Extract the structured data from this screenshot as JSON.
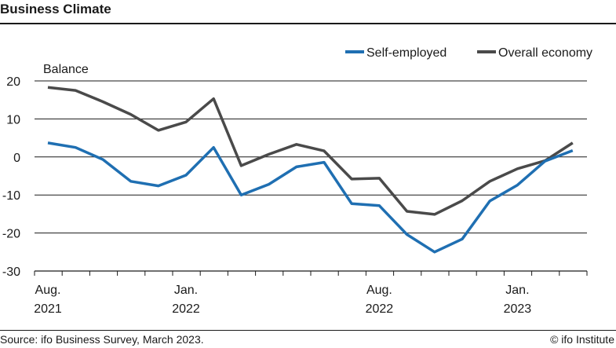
{
  "header": {
    "title": "Business Climate"
  },
  "footer": {
    "source": "Source: ifo Business Survey, March 2023.",
    "credit": "© ifo Institute"
  },
  "colors": {
    "self_employed": "#1f6fb2",
    "overall": "#4a4a4a",
    "grid": "#1a1a1a"
  },
  "chart_data": {
    "type": "line",
    "title": "Business Climate",
    "ylabel": "Balance",
    "ylim": [
      -30,
      20
    ],
    "yticks": [
      20,
      10,
      0,
      -10,
      -20,
      -30
    ],
    "grid": true,
    "legend_position": "top-right",
    "x": [
      "2021-08",
      "2021-09",
      "2021-10",
      "2021-11",
      "2021-12",
      "2022-01",
      "2022-02",
      "2022-03",
      "2022-04",
      "2022-05",
      "2022-06",
      "2022-07",
      "2022-08",
      "2022-09",
      "2022-10",
      "2022-11",
      "2022-12",
      "2023-01",
      "2023-02",
      "2023-03"
    ],
    "xtick_labels": [
      {
        "month": "Aug.",
        "year": "2021",
        "at": "2021-08"
      },
      {
        "month": "Jan.",
        "year": "2022",
        "at": "2022-01"
      },
      {
        "month": "Aug.",
        "year": "2022",
        "at": "2022-08"
      },
      {
        "month": "Jan.",
        "year": "2023",
        "at": "2023-01"
      }
    ],
    "series": [
      {
        "name": "Self-employed",
        "color": "#1f6fb2",
        "values": [
          3.7,
          2.5,
          -0.7,
          -6.4,
          -7.6,
          -4.8,
          2.5,
          -10.0,
          -7.2,
          -2.6,
          -1.4,
          -12.3,
          -12.8,
          -20.4,
          -25.0,
          -21.6,
          -11.6,
          -7.4,
          -1.1,
          1.7
        ]
      },
      {
        "name": "Overall economy",
        "color": "#4a4a4a",
        "values": [
          18.3,
          17.5,
          14.5,
          11.2,
          7.0,
          9.2,
          15.3,
          -2.3,
          0.7,
          3.3,
          1.6,
          -5.8,
          -5.6,
          -14.3,
          -15.1,
          -11.5,
          -6.4,
          -3.1,
          -1.0,
          3.7
        ]
      }
    ]
  }
}
